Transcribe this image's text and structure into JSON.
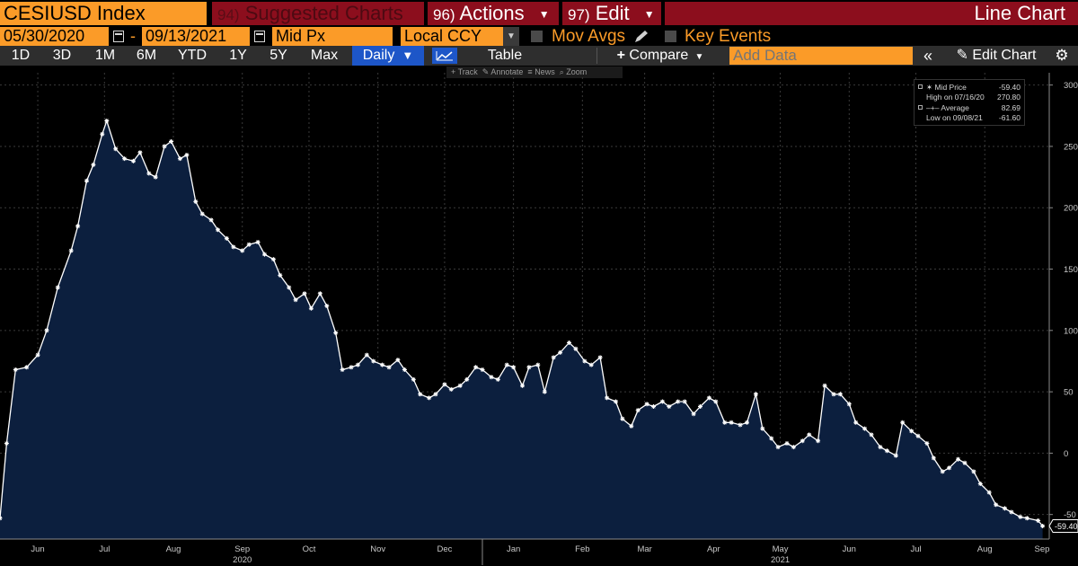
{
  "header": {
    "ticker": "CESIUSD Index",
    "menu": [
      {
        "num": "94)",
        "label": "Suggested Charts"
      },
      {
        "num": "96)",
        "label": "Actions"
      },
      {
        "num": "97)",
        "label": "Edit"
      }
    ],
    "title": "Line Chart"
  },
  "controls": {
    "start_date": "05/30/2020",
    "end_date": "09/13/2021",
    "dash": "-",
    "field": "Mid Px",
    "currency": "Local CCY",
    "mov_avgs": "Mov Avgs",
    "key_events": "Key Events"
  },
  "toolbar": {
    "ranges": [
      "1D",
      "3D",
      "1M",
      "6M",
      "YTD",
      "1Y",
      "5Y",
      "Max"
    ],
    "frequency": "Daily",
    "table": "Table",
    "compare": "Compare",
    "add_data_placeholder": "Add Data",
    "edit_chart": "Edit Chart",
    "subtools": [
      "Track",
      "Annotate",
      "News",
      "Zoom"
    ]
  },
  "legend": {
    "rows": [
      {
        "label": "Mid Price",
        "value": "-59.40"
      },
      {
        "label": "High on 07/16/20",
        "value": "270.80"
      },
      {
        "label": "Average",
        "value": "82.69"
      },
      {
        "label": "Low on 09/08/21",
        "value": "-61.60"
      }
    ]
  },
  "colors": {
    "accent_orange": "#fb9b28",
    "header_red": "#8c0e1d",
    "area_fill": "#0c1f3e",
    "line": "#ffffff",
    "button_blue": "#1d56c8"
  },
  "chart_data": {
    "type": "area",
    "series": [
      {
        "name": "CESIUSD Index",
        "x": [
          "2020-05-29",
          "2020-06-01",
          "2020-06-05",
          "2020-06-10",
          "2020-06-15",
          "2020-06-19",
          "2020-06-24",
          "2020-06-30",
          "2020-07-03",
          "2020-07-07",
          "2020-07-10",
          "2020-07-14",
          "2020-07-16",
          "2020-07-20",
          "2020-07-24",
          "2020-07-28",
          "2020-07-31",
          "2020-08-04",
          "2020-08-07",
          "2020-08-11",
          "2020-08-14",
          "2020-08-18",
          "2020-08-21",
          "2020-08-25",
          "2020-08-28",
          "2020-09-01",
          "2020-09-04",
          "2020-09-08",
          "2020-09-11",
          "2020-09-15",
          "2020-09-18",
          "2020-09-22",
          "2020-09-25",
          "2020-09-29",
          "2020-10-02",
          "2020-10-06",
          "2020-10-09",
          "2020-10-13",
          "2020-10-16",
          "2020-10-20",
          "2020-10-23",
          "2020-10-27",
          "2020-10-30",
          "2020-11-03",
          "2020-11-06",
          "2020-11-10",
          "2020-11-13",
          "2020-11-17",
          "2020-11-20",
          "2020-11-24",
          "2020-11-27",
          "2020-12-01",
          "2020-12-04",
          "2020-12-08",
          "2020-12-11",
          "2020-12-15",
          "2020-12-18",
          "2020-12-22",
          "2020-12-25",
          "2020-12-29",
          "2021-01-01",
          "2021-01-05",
          "2021-01-08",
          "2021-01-12",
          "2021-01-15",
          "2021-01-19",
          "2021-01-22",
          "2021-01-26",
          "2021-01-29",
          "2021-02-02",
          "2021-02-05",
          "2021-02-09",
          "2021-02-12",
          "2021-02-16",
          "2021-02-19",
          "2021-02-23",
          "2021-02-26",
          "2021-03-02",
          "2021-03-05",
          "2021-03-09",
          "2021-03-12",
          "2021-03-16",
          "2021-03-19",
          "2021-03-23",
          "2021-03-26",
          "2021-03-30",
          "2021-04-02",
          "2021-04-06",
          "2021-04-09",
          "2021-04-13",
          "2021-04-16",
          "2021-04-20",
          "2021-04-23",
          "2021-04-27",
          "2021-04-30",
          "2021-05-04",
          "2021-05-07",
          "2021-05-11",
          "2021-05-14",
          "2021-05-18",
          "2021-05-21",
          "2021-05-25",
          "2021-05-28",
          "2021-06-01",
          "2021-06-04",
          "2021-06-08",
          "2021-06-11",
          "2021-06-15",
          "2021-06-18",
          "2021-06-22",
          "2021-06-25",
          "2021-06-29",
          "2021-07-02",
          "2021-07-06",
          "2021-07-09",
          "2021-07-13",
          "2021-07-16",
          "2021-07-20",
          "2021-07-23",
          "2021-07-27",
          "2021-07-30",
          "2021-08-03",
          "2021-08-06",
          "2021-08-10",
          "2021-08-13",
          "2021-08-17",
          "2021-08-20",
          "2021-08-24",
          "2021-08-27",
          "2021-08-31",
          "2021-09-03",
          "2021-09-08",
          "2021-09-10"
        ],
        "values": [
          -53,
          8,
          68,
          70,
          80,
          100,
          135,
          165,
          185,
          222,
          235,
          260,
          270.8,
          248,
          240,
          238,
          245,
          228,
          225,
          250,
          254,
          240,
          243,
          205,
          195,
          190,
          182,
          175,
          168,
          165,
          170,
          172,
          162,
          158,
          145,
          135,
          125,
          130,
          118,
          130,
          120,
          98,
          68,
          70,
          72,
          80,
          75,
          72,
          70,
          76,
          68,
          60,
          48,
          45,
          48,
          56,
          52,
          55,
          60,
          70,
          68,
          62,
          60,
          72,
          70,
          55,
          70,
          72,
          50,
          78,
          82,
          90,
          85,
          75,
          72,
          78,
          45,
          42,
          28,
          22,
          35,
          40,
          38,
          42,
          38,
          42,
          42,
          32,
          38,
          45,
          42,
          25,
          25,
          23,
          25,
          48,
          20,
          12,
          5,
          8,
          5,
          10,
          15,
          10,
          55,
          48,
          48,
          40,
          25,
          20,
          15,
          5,
          2,
          -2,
          25,
          18,
          14,
          8,
          -4,
          -15,
          -12,
          -5,
          -8,
          -15,
          -25,
          -32,
          -42,
          -45,
          -48,
          -52,
          -53,
          -55,
          -59.4
        ],
        "high": {
          "date": "07/16/20",
          "value": 270.8
        },
        "low": {
          "date": "09/08/21",
          "value": -61.6
        },
        "average": 82.69,
        "last": -59.4
      }
    ],
    "x_range": [
      "2020-05-29",
      "2021-09-13"
    ],
    "ylim": [
      -70,
      310
    ],
    "y_ticks": [
      300,
      250,
      200,
      150,
      100,
      50,
      0,
      -50
    ],
    "x_ticks": [
      {
        "label": "Jun",
        "date": "2020-06-15"
      },
      {
        "label": "Jul",
        "date": "2020-07-15"
      },
      {
        "label": "Aug",
        "date": "2020-08-15"
      },
      {
        "label": "Sep",
        "date": "2020-09-15"
      },
      {
        "label": "Oct",
        "date": "2020-10-15"
      },
      {
        "label": "Nov",
        "date": "2020-11-15"
      },
      {
        "label": "Dec",
        "date": "2020-12-15"
      },
      {
        "label": "Jan",
        "date": "2021-01-15"
      },
      {
        "label": "Feb",
        "date": "2021-02-15"
      },
      {
        "label": "Mar",
        "date": "2021-03-15"
      },
      {
        "label": "Apr",
        "date": "2021-04-15"
      },
      {
        "label": "May",
        "date": "2021-05-15"
      },
      {
        "label": "Jun",
        "date": "2021-06-15"
      },
      {
        "label": "Jul",
        "date": "2021-07-15"
      },
      {
        "label": "Aug",
        "date": "2021-08-15"
      },
      {
        "label": "Sep",
        "date": "2021-09-15"
      }
    ],
    "year_labels": [
      {
        "label": "2020",
        "date": "2020-09-15"
      },
      {
        "label": "2021",
        "date": "2021-05-15"
      }
    ],
    "last_price_label": "-59.40",
    "grid": true,
    "legend": "top-right"
  }
}
